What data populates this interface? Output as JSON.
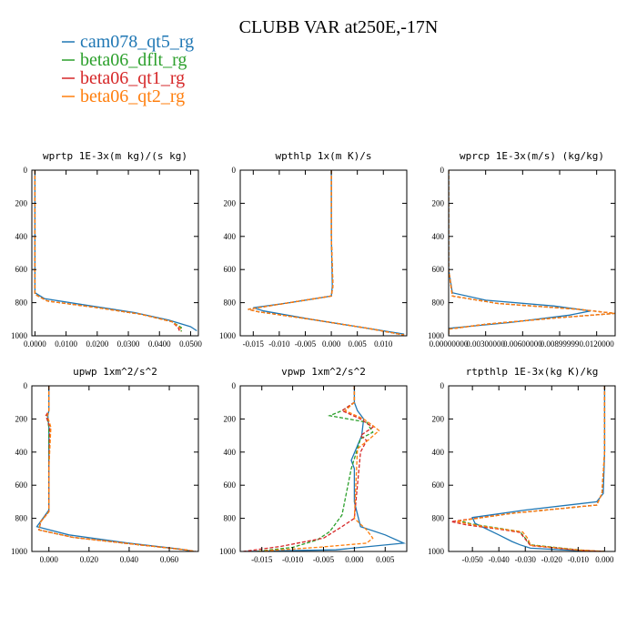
{
  "figure": {
    "title": "CLUBB VAR at250E,-17N",
    "colors": {
      "cam078_qt5_rg": "#1f77b4",
      "beta06_dflt_rg": "#2ca02c",
      "beta06_qt1_rg": "#d62728",
      "beta06_qt2_rg": "#ff7f0e"
    }
  },
  "legend": [
    {
      "name": "cam078_qt5_rg",
      "color": "#1f77b4",
      "dash": "solid"
    },
    {
      "name": "beta06_dflt_rg",
      "color": "#2ca02c",
      "dash": "dashed"
    },
    {
      "name": "beta06_qt1_rg",
      "color": "#d62728",
      "dash": "dashed"
    },
    {
      "name": "beta06_qt2_rg",
      "color": "#ff7f0e",
      "dash": "dashed"
    }
  ],
  "chart_data": [
    {
      "type": "line",
      "title": "wprtp  1E-3x(m kg)/(s kg)",
      "xlim": [
        -0.001,
        0.0525
      ],
      "ylim": [
        1000,
        0
      ],
      "y_inverted": true,
      "xticks": [
        "0.0000",
        "0.0100",
        "0.0200",
        "0.0300",
        "0.0400",
        "0.0500"
      ],
      "xtick_values": [
        0,
        0.01,
        0.02,
        0.03,
        0.04,
        0.05
      ],
      "yticks": [
        0,
        200,
        400,
        600,
        800,
        1000
      ],
      "series": [
        {
          "name": "cam078_qt5_rg",
          "x": [
            0,
            0,
            0,
            0,
            0.003,
            0.018,
            0.032,
            0.043,
            0.05,
            0.052
          ],
          "y": [
            0,
            300,
            600,
            740,
            775,
            820,
            860,
            905,
            945,
            970
          ]
        },
        {
          "name": "beta06_dflt_rg",
          "x": [
            0,
            0,
            0,
            0,
            0.004,
            0.02,
            0.034,
            0.044,
            0.047,
            0.047
          ],
          "y": [
            0,
            300,
            600,
            750,
            790,
            830,
            870,
            915,
            950,
            975
          ]
        },
        {
          "name": "beta06_qt1_rg",
          "x": [
            0,
            0,
            0,
            0,
            0.004,
            0.02,
            0.034,
            0.044,
            0.046,
            0.0465
          ],
          "y": [
            0,
            300,
            600,
            750,
            790,
            830,
            870,
            915,
            950,
            975
          ]
        },
        {
          "name": "beta06_qt2_rg",
          "x": [
            0,
            0,
            0,
            0,
            0.004,
            0.02,
            0.034,
            0.044,
            0.0465,
            0.047
          ],
          "y": [
            0,
            300,
            600,
            750,
            790,
            830,
            870,
            915,
            950,
            975
          ]
        }
      ]
    },
    {
      "type": "line",
      "title": "wpthlp  1x(m K)/s",
      "xlim": [
        -0.0175,
        0.0145
      ],
      "ylim": [
        1000,
        0
      ],
      "y_inverted": true,
      "xticks": [
        "-0.015",
        "-0.010",
        "-0.005",
        "0.000",
        "0.005",
        "0.010"
      ],
      "xtick_values": [
        -0.015,
        -0.01,
        -0.005,
        0,
        0.005,
        0.01
      ],
      "yticks": [
        0,
        200,
        400,
        600,
        800,
        1000
      ],
      "series": [
        {
          "name": "cam078_qt5_rg",
          "x": [
            0,
            0,
            0.0002,
            0,
            -0.008,
            -0.015,
            -0.013,
            -0.004,
            0.006,
            0.014
          ],
          "y": [
            0,
            400,
            700,
            760,
            800,
            830,
            850,
            900,
            950,
            990
          ]
        },
        {
          "name": "beta06_dflt_rg",
          "x": [
            0,
            0,
            0.0003,
            0,
            -0.01,
            -0.016,
            -0.014,
            -0.003,
            0.007,
            0.014
          ],
          "y": [
            0,
            400,
            700,
            760,
            810,
            840,
            855,
            905,
            955,
            995
          ]
        },
        {
          "name": "beta06_qt1_rg",
          "x": [
            0,
            0,
            0.0003,
            0,
            -0.01,
            -0.016,
            -0.014,
            -0.003,
            0.007,
            0.014
          ],
          "y": [
            0,
            400,
            700,
            760,
            810,
            840,
            855,
            905,
            955,
            995
          ]
        },
        {
          "name": "beta06_qt2_rg",
          "x": [
            0,
            0,
            0.0003,
            0,
            -0.01,
            -0.016,
            -0.014,
            -0.003,
            0.007,
            0.014
          ],
          "y": [
            0,
            400,
            700,
            760,
            810,
            840,
            855,
            905,
            955,
            995
          ]
        }
      ]
    },
    {
      "type": "line",
      "title": "wprcp  1E-3x(m/s) (kg/kg)",
      "xlim": [
        0,
        0.0135
      ],
      "ylim": [
        1000,
        0
      ],
      "y_inverted": true,
      "xticks": [
        "0.00000000",
        "0.00300000",
        "0.00600000",
        "0.00899999",
        "0.0120000"
      ],
      "xtick_values": [
        0,
        0.003,
        0.006,
        0.009,
        0.012
      ],
      "yticks": [
        0,
        200,
        400,
        600,
        800,
        1000
      ],
      "series": [
        {
          "name": "cam078_qt5_rg",
          "x": [
            0,
            0,
            0,
            0.0003,
            0.003,
            0.0085,
            0.0115,
            0.0098,
            0.005,
            0,
            0
          ],
          "y": [
            0,
            300,
            600,
            740,
            785,
            820,
            850,
            875,
            920,
            955,
            1000
          ]
        },
        {
          "name": "beta06_dflt_rg",
          "x": [
            0,
            0,
            0,
            0.0003,
            0.004,
            0.0105,
            0.0135,
            0.009,
            0.003,
            0,
            0
          ],
          "y": [
            0,
            300,
            600,
            760,
            805,
            840,
            865,
            890,
            930,
            960,
            1000
          ]
        },
        {
          "name": "beta06_qt1_rg",
          "x": [
            0,
            0,
            0,
            0.0003,
            0.004,
            0.0105,
            0.0135,
            0.009,
            0.003,
            0,
            0
          ],
          "y": [
            0,
            300,
            600,
            760,
            805,
            840,
            865,
            890,
            930,
            960,
            1000
          ]
        },
        {
          "name": "beta06_qt2_rg",
          "x": [
            0,
            0,
            0,
            0.0003,
            0.004,
            0.0105,
            0.0135,
            0.009,
            0.003,
            0,
            0
          ],
          "y": [
            0,
            300,
            600,
            760,
            805,
            840,
            865,
            890,
            930,
            960,
            1000
          ]
        }
      ]
    },
    {
      "type": "line",
      "title": "upwp  1xm^2/s^2",
      "xlim": [
        -0.0085,
        0.0745
      ],
      "ylim": [
        1000,
        0
      ],
      "y_inverted": true,
      "xticks": [
        "0.000",
        "0.020",
        "0.040",
        "0.060"
      ],
      "xtick_values": [
        0,
        0.02,
        0.04,
        0.06
      ],
      "yticks": [
        0,
        200,
        400,
        600,
        800,
        1000
      ],
      "series": [
        {
          "name": "cam078_qt5_rg",
          "x": [
            0,
            0,
            -0.0005,
            0,
            0,
            0,
            -0.003,
            -0.006,
            0.01,
            0.04,
            0.065,
            0.072
          ],
          "y": [
            0,
            150,
            180,
            250,
            500,
            750,
            800,
            850,
            900,
            950,
            985,
            1000
          ]
        },
        {
          "name": "beta06_dflt_rg",
          "x": [
            0,
            0,
            -0.001,
            0,
            0,
            0,
            -0.004,
            -0.005,
            0.012,
            0.045,
            0.068,
            0.073
          ],
          "y": [
            0,
            150,
            180,
            250,
            500,
            760,
            820,
            870,
            915,
            960,
            990,
            1000
          ]
        },
        {
          "name": "beta06_qt1_rg",
          "x": [
            0,
            0,
            -0.0015,
            0.0005,
            0,
            0,
            -0.004,
            -0.005,
            0.012,
            0.045,
            0.068,
            0.073
          ],
          "y": [
            0,
            150,
            180,
            250,
            500,
            760,
            820,
            870,
            915,
            960,
            990,
            1000
          ]
        },
        {
          "name": "beta06_qt2_rg",
          "x": [
            0,
            0,
            -0.0008,
            0.001,
            0,
            0,
            -0.004,
            -0.005,
            0.012,
            0.045,
            0.068,
            0.073
          ],
          "y": [
            0,
            150,
            180,
            250,
            500,
            760,
            820,
            870,
            915,
            960,
            990,
            1000
          ]
        }
      ]
    },
    {
      "type": "line",
      "title": "vpwp  1xm^2/s^2",
      "xlim": [
        -0.0185,
        0.0085
      ],
      "ylim": [
        1000,
        0
      ],
      "y_inverted": true,
      "xticks": [
        "-0.015",
        "-0.010",
        "-0.005",
        "0.000",
        "0.005"
      ],
      "xtick_values": [
        -0.015,
        -0.01,
        -0.005,
        0,
        0.005
      ],
      "yticks": [
        0,
        200,
        400,
        600,
        800,
        1000
      ],
      "series": [
        {
          "name": "cam078_qt5_rg",
          "x": [
            0,
            0,
            0.0005,
            0.0015,
            0.0012,
            -0.0005,
            0,
            0,
            0.001,
            0.005,
            0.008,
            -0.003,
            -0.018
          ],
          "y": [
            0,
            100,
            150,
            200,
            300,
            450,
            500,
            700,
            850,
            900,
            950,
            990,
            1000
          ]
        },
        {
          "name": "beta06_dflt_rg",
          "x": [
            0,
            0,
            -0.002,
            -0.004,
            -0.001,
            0.002,
            0.003,
            0.001,
            -0.0005,
            -0.002,
            -0.004,
            -0.006,
            -0.01,
            -0.016
          ],
          "y": [
            0,
            100,
            150,
            180,
            200,
            220,
            280,
            320,
            500,
            780,
            880,
            930,
            975,
            1000
          ]
        },
        {
          "name": "beta06_qt1_rg",
          "x": [
            0,
            0,
            -0.002,
            0.001,
            0.003,
            0.001,
            0.002,
            0.001,
            0,
            -0.002,
            -0.005,
            -0.012,
            -0.018
          ],
          "y": [
            0,
            100,
            150,
            200,
            250,
            300,
            330,
            400,
            800,
            850,
            920,
            970,
            1000
          ]
        },
        {
          "name": "beta06_qt2_rg",
          "x": [
            0,
            0,
            -0.0015,
            0.0015,
            0.003,
            0.004,
            0.0025,
            0.0005,
            0,
            0.002,
            0.003,
            0.002,
            -0.006,
            -0.016
          ],
          "y": [
            0,
            100,
            150,
            200,
            240,
            270,
            320,
            380,
            800,
            870,
            920,
            950,
            975,
            1000
          ]
        }
      ]
    },
    {
      "type": "line",
      "title": "rtpthlp  1E-3x(kg K)/kg",
      "xlim": [
        -0.059,
        0.004
      ],
      "ylim": [
        1000,
        0
      ],
      "y_inverted": true,
      "xticks": [
        "-0.050",
        "-0.040",
        "-0.030",
        "-0.020",
        "-0.010",
        "0.000"
      ],
      "xtick_values": [
        -0.05,
        -0.04,
        -0.03,
        -0.02,
        -0.01,
        0
      ],
      "yticks": [
        0,
        200,
        400,
        600,
        800,
        1000
      ],
      "series": [
        {
          "name": "cam078_qt5_rg",
          "x": [
            0,
            0,
            -0.0005,
            -0.003,
            -0.03,
            -0.05,
            -0.049,
            -0.04,
            -0.035,
            -0.032,
            -0.028,
            -0.01,
            0
          ],
          "y": [
            0,
            400,
            650,
            700,
            750,
            795,
            830,
            900,
            940,
            960,
            980,
            995,
            1000
          ]
        },
        {
          "name": "beta06_dflt_rg",
          "x": [
            0,
            0,
            -0.001,
            -0.003,
            -0.035,
            -0.055,
            -0.05,
            -0.04,
            -0.032,
            -0.03,
            -0.028,
            -0.01,
            0
          ],
          "y": [
            0,
            400,
            650,
            720,
            770,
            815,
            835,
            860,
            880,
            920,
            960,
            990,
            1000
          ]
        },
        {
          "name": "beta06_qt1_rg",
          "x": [
            0,
            0,
            -0.001,
            -0.003,
            -0.035,
            -0.058,
            -0.052,
            -0.04,
            -0.032,
            -0.03,
            -0.028,
            -0.01,
            0
          ],
          "y": [
            0,
            400,
            650,
            720,
            770,
            820,
            840,
            865,
            885,
            925,
            965,
            992,
            1000
          ]
        },
        {
          "name": "beta06_qt2_rg",
          "x": [
            0,
            0,
            -0.001,
            -0.003,
            -0.035,
            -0.056,
            -0.05,
            -0.04,
            -0.031,
            -0.029,
            -0.028,
            -0.01,
            0
          ],
          "y": [
            0,
            400,
            650,
            720,
            770,
            818,
            838,
            862,
            882,
            922,
            962,
            991,
            1000
          ]
        }
      ]
    }
  ]
}
